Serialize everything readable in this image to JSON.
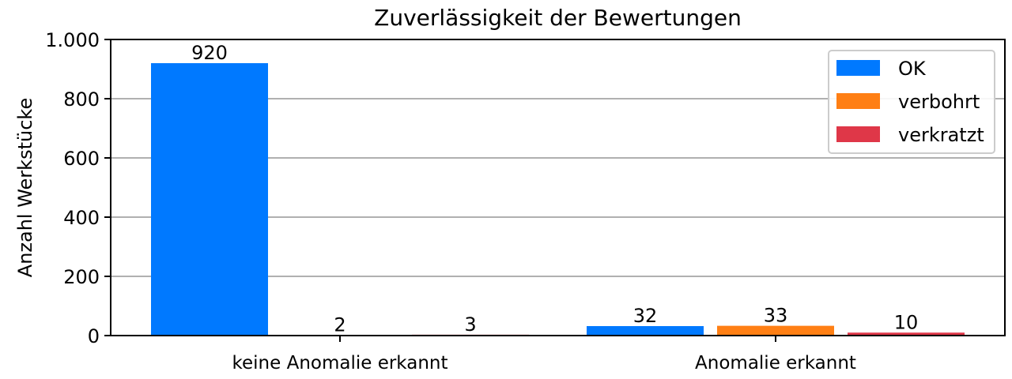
{
  "chart_data": {
    "type": "bar",
    "title": "Zuverlässigkeit der Bewertungen",
    "xlabel": "",
    "ylabel": "Anzahl Werkstücke",
    "ylim": [
      0,
      1000
    ],
    "yticks": [
      0,
      200,
      400,
      600,
      800,
      1000
    ],
    "ytick_labels": [
      "0",
      "200",
      "400",
      "600",
      "800",
      "1.000"
    ],
    "categories": [
      "keine Anomalie erkannt",
      "Anomalie erkannt"
    ],
    "series": [
      {
        "name": "OK",
        "color": "#0079FF",
        "values": [
          920,
          32
        ]
      },
      {
        "name": "verbohrt",
        "color": "#FF7F14",
        "values": [
          2,
          33
        ]
      },
      {
        "name": "verkratzt",
        "color": "#DF3748",
        "values": [
          3,
          10
        ]
      }
    ],
    "grid": "y",
    "legend_position": "top-right"
  }
}
